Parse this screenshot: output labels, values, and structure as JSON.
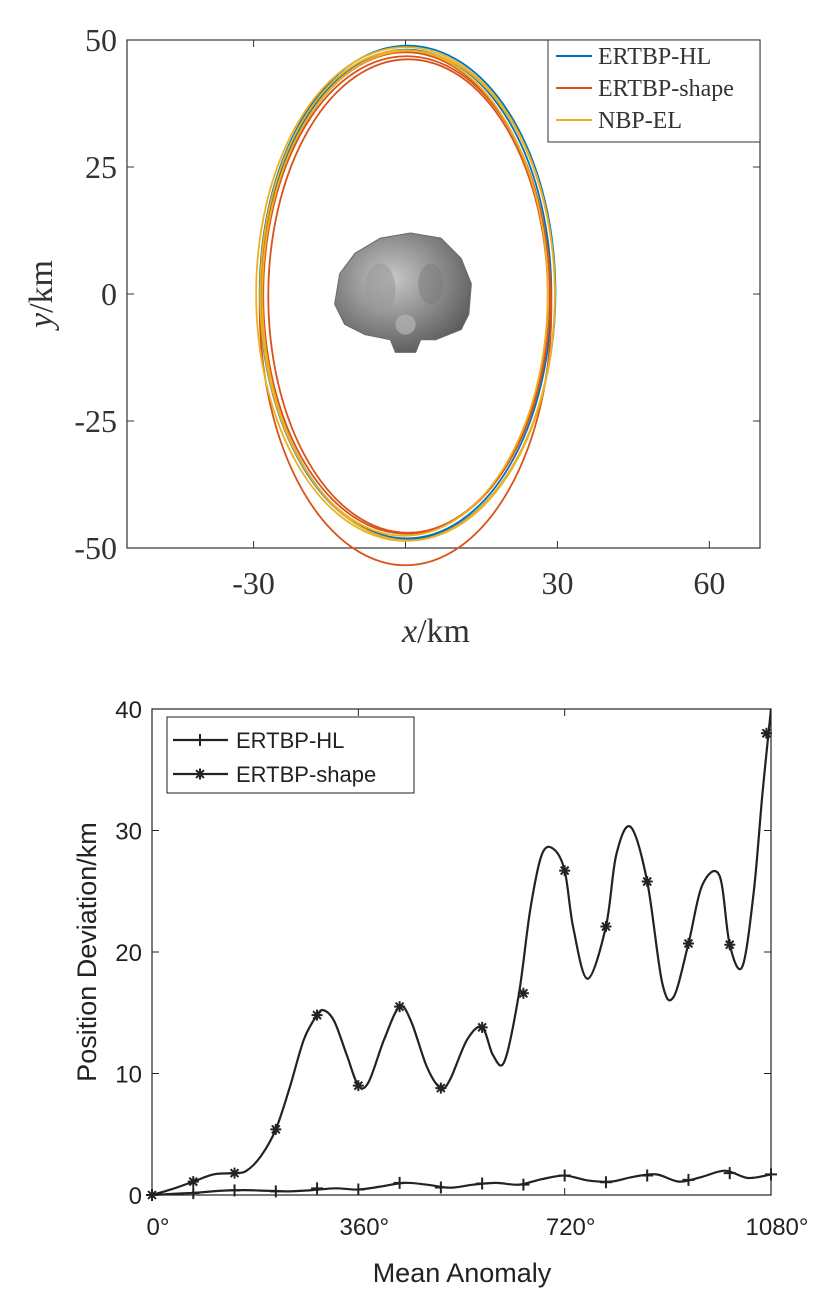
{
  "chart_data": [
    {
      "type": "line",
      "xlabel": {
        "var": "x",
        "unit": "/km"
      },
      "ylabel": {
        "var": "y",
        "unit": "/km"
      },
      "xlim": [
        -55,
        70
      ],
      "ylim": [
        -50,
        50
      ],
      "xticks": [
        "-30",
        "0",
        "30",
        "60"
      ],
      "yticks": [
        "50",
        "25",
        "0",
        "-25",
        "-50"
      ],
      "xtick_values": [
        -30,
        0,
        30,
        60
      ],
      "ytick_values": [
        50,
        25,
        0,
        -25,
        -50
      ],
      "legend_position": "top-right",
      "series": [
        {
          "name": "ERTBP-HL",
          "color": "#0072BD",
          "orbits": [
            {
              "cx": 0.4,
              "cy": 0.3,
              "rx": 29.2,
              "ry": 48.6
            },
            {
              "cx": 0.2,
              "cy": 0.0,
              "rx": 28.6,
              "ry": 48.1
            }
          ]
        },
        {
          "name": "ERTBP-shape",
          "color": "#D95319",
          "orbits": [
            {
              "cx": 0.0,
              "cy": -2.9,
              "rx": 28.8,
              "ry": 50.5
            },
            {
              "cx": 0.2,
              "cy": -0.2,
              "rx": 28.3,
              "ry": 47.0
            },
            {
              "cx": 0.5,
              "cy": -0.4,
              "rx": 27.6,
              "ry": 46.6
            }
          ]
        },
        {
          "name": "NBP-EL",
          "color": "#EDB120",
          "orbits": [
            {
              "cx": 0.0,
              "cy": 0.0,
              "rx": 29.5,
              "ry": 48.6
            },
            {
              "cx": 0.6,
              "cy": -0.3,
              "rx": 28.9,
              "ry": 48.2
            },
            {
              "cx": -0.3,
              "cy": 0.2,
              "rx": 28.4,
              "ry": 47.8
            }
          ]
        }
      ],
      "central_body": {
        "color": "#8c8c8c",
        "shading": "#5c5c5c"
      }
    },
    {
      "type": "line",
      "xlabel": "Mean Anomaly",
      "ylabel": "Position Deviation/km",
      "xlim": [
        0,
        1080
      ],
      "ylim": [
        0,
        40
      ],
      "xticks": [
        "0°",
        "360°",
        "720°",
        "1080°"
      ],
      "yticks": [
        "0",
        "10",
        "20",
        "30",
        "40"
      ],
      "xtick_values": [
        0,
        360,
        720,
        1080
      ],
      "ytick_values": [
        0,
        10,
        20,
        30,
        40
      ],
      "legend_position": "top-left",
      "series": [
        {
          "name": "ERTBP-HL",
          "marker": "plus",
          "color": "#222222",
          "x": [
            0,
            40,
            80,
            120,
            160,
            200,
            240,
            280,
            320,
            360,
            400,
            440,
            480,
            520,
            560,
            600,
            640,
            680,
            720,
            760,
            800,
            840,
            880,
            920,
            960,
            1000,
            1040,
            1080
          ],
          "y": [
            0,
            0.1,
            0.2,
            0.35,
            0.4,
            0.35,
            0.3,
            0.4,
            0.55,
            0.45,
            0.7,
            1.0,
            0.85,
            0.6,
            0.85,
            1.0,
            0.85,
            1.3,
            1.6,
            1.2,
            1.1,
            1.5,
            1.7,
            1.1,
            1.5,
            2.0,
            1.4,
            1.7
          ],
          "marker_x": [
            0,
            72,
            144,
            216,
            288,
            360,
            432,
            504,
            576,
            648,
            720,
            792,
            864,
            936,
            1008,
            1080
          ],
          "marker_y": [
            0,
            0.15,
            0.38,
            0.3,
            0.55,
            0.45,
            1.0,
            0.62,
            0.95,
            0.85,
            1.6,
            1.05,
            1.6,
            1.25,
            1.8,
            1.7
          ]
        },
        {
          "name": "ERTBP-shape",
          "marker": "asterisk",
          "color": "#222222",
          "x": [
            0,
            36,
            72,
            108,
            144,
            165,
            190,
            216,
            240,
            265,
            288,
            300,
            318,
            340,
            360,
            378,
            405,
            432,
            452,
            480,
            504,
            520,
            550,
            576,
            595,
            615,
            640,
            660,
            680,
            700,
            720,
            735,
            760,
            792,
            810,
            835,
            864,
            890,
            910,
            936,
            960,
            990,
            1008,
            1030,
            1050,
            1065,
            1080
          ],
          "y": [
            0,
            0.5,
            1.1,
            1.7,
            1.8,
            2.0,
            3.2,
            5.4,
            8.8,
            12.8,
            14.8,
            15.2,
            14.3,
            11.5,
            9.0,
            9.3,
            12.8,
            15.5,
            14.3,
            10.5,
            8.8,
            9.5,
            12.8,
            13.8,
            11.5,
            11.0,
            16.5,
            23.5,
            28.0,
            28.5,
            26.7,
            22.0,
            17.8,
            22.1,
            28.0,
            30.3,
            25.8,
            17.5,
            16.3,
            20.7,
            25.5,
            26.3,
            20.6,
            18.8,
            25.0,
            33.0,
            40.0
          ],
          "marker_x": [
            0,
            72,
            144,
            216,
            288,
            360,
            432,
            504,
            576,
            648,
            720,
            792,
            864,
            936,
            1008,
            1072
          ],
          "marker_y": [
            0,
            1.1,
            1.8,
            5.4,
            14.8,
            9.0,
            15.5,
            8.8,
            13.8,
            16.6,
            26.7,
            22.1,
            25.8,
            20.7,
            20.6,
            38.0
          ]
        }
      ]
    }
  ]
}
